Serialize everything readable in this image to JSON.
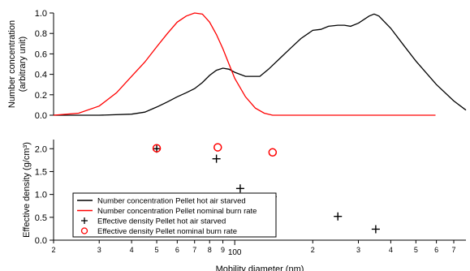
{
  "chart_data": [
    {
      "type": "line",
      "ylabel": "Number concentration\n(arbitrary unit)",
      "ylim": [
        0,
        1.0
      ],
      "yticks": [
        "0.0",
        "0.2",
        "0.4",
        "0.6",
        "0.8",
        "1.0"
      ],
      "xscale": "log",
      "xlim": [
        20,
        780
      ],
      "grid": false,
      "series": [
        {
          "name": "Number concentration Pellet hot air starved",
          "color": "#000000",
          "x": [
            20,
            30,
            40,
            45,
            50,
            55,
            60,
            65,
            70,
            75,
            80,
            85,
            90,
            95,
            100,
            110,
            115,
            125,
            135,
            150,
            165,
            180,
            200,
            215,
            230,
            250,
            265,
            280,
            300,
            330,
            345,
            360,
            400,
            450,
            500,
            600,
            700,
            780
          ],
          "values": [
            0.0,
            0.0,
            0.01,
            0.03,
            0.08,
            0.13,
            0.18,
            0.22,
            0.26,
            0.32,
            0.39,
            0.44,
            0.46,
            0.45,
            0.42,
            0.38,
            0.38,
            0.38,
            0.45,
            0.56,
            0.66,
            0.75,
            0.83,
            0.84,
            0.87,
            0.88,
            0.88,
            0.87,
            0.9,
            0.97,
            0.99,
            0.97,
            0.85,
            0.68,
            0.53,
            0.3,
            0.14,
            0.05
          ]
        },
        {
          "name": "Number concentration Pellet nominal burn rate",
          "color": "#ff0000",
          "x": [
            20,
            25,
            30,
            35,
            40,
            45,
            50,
            55,
            60,
            65,
            70,
            75,
            80,
            85,
            90,
            95,
            100,
            110,
            120,
            130,
            140,
            150,
            180,
            250,
            400,
            595
          ],
          "values": [
            0.0,
            0.02,
            0.09,
            0.22,
            0.38,
            0.52,
            0.67,
            0.8,
            0.91,
            0.97,
            1.0,
            0.99,
            0.91,
            0.79,
            0.65,
            0.5,
            0.36,
            0.18,
            0.07,
            0.02,
            0.0,
            0.0,
            0.0,
            0.0,
            0.0,
            0.0
          ]
        }
      ]
    },
    {
      "type": "scatter",
      "ylabel": "Effective density (g/cm³)",
      "xlabel": "Mobility diameter (nm)",
      "ylim": [
        0,
        2.2
      ],
      "yticks": [
        "0.0",
        "0.5",
        "1.0",
        "1.5",
        "2.0"
      ],
      "xscale": "log",
      "xlim": [
        20,
        780
      ],
      "xticks": [
        {
          "v": 20,
          "label": "2"
        },
        {
          "v": 30,
          "label": "3"
        },
        {
          "v": 40,
          "label": "4"
        },
        {
          "v": 50,
          "label": "5"
        },
        {
          "v": 60,
          "label": "6"
        },
        {
          "v": 70,
          "label": "7"
        },
        {
          "v": 80,
          "label": "8"
        },
        {
          "v": 90,
          "label": "9"
        },
        {
          "v": 100,
          "label": "100"
        },
        {
          "v": 200,
          "label": "2"
        },
        {
          "v": 300,
          "label": "3"
        },
        {
          "v": 400,
          "label": "4"
        },
        {
          "v": 500,
          "label": "5"
        },
        {
          "v": 600,
          "label": "6"
        },
        {
          "v": 700,
          "label": "7"
        }
      ],
      "grid": false,
      "legend_position": "lower-left",
      "legend": [
        {
          "label": "Number concentration Pellet hot air starved",
          "marker": "line",
          "color": "#000000"
        },
        {
          "label": "Number concentration Pellet nominal burn rate",
          "marker": "line",
          "color": "#ff0000"
        },
        {
          "label": "Effective density Pellet hot air starved",
          "marker": "plus",
          "color": "#000000"
        },
        {
          "label": "Effective density Pellet nominal burn rate",
          "marker": "circle",
          "color": "#ff0000"
        }
      ],
      "series": [
        {
          "name": "Effective density Pellet hot air starved",
          "marker": "plus",
          "color": "#000000",
          "x": [
            50,
            85,
            105,
            140,
            250,
            350
          ],
          "values": [
            2.0,
            1.78,
            1.13,
            0.95,
            0.52,
            0.24
          ]
        },
        {
          "name": "Effective density Pellet nominal burn rate",
          "marker": "circle",
          "color": "#ff0000",
          "x": [
            50,
            86,
            140
          ],
          "values": [
            2.01,
            2.03,
            1.92
          ]
        }
      ]
    }
  ]
}
